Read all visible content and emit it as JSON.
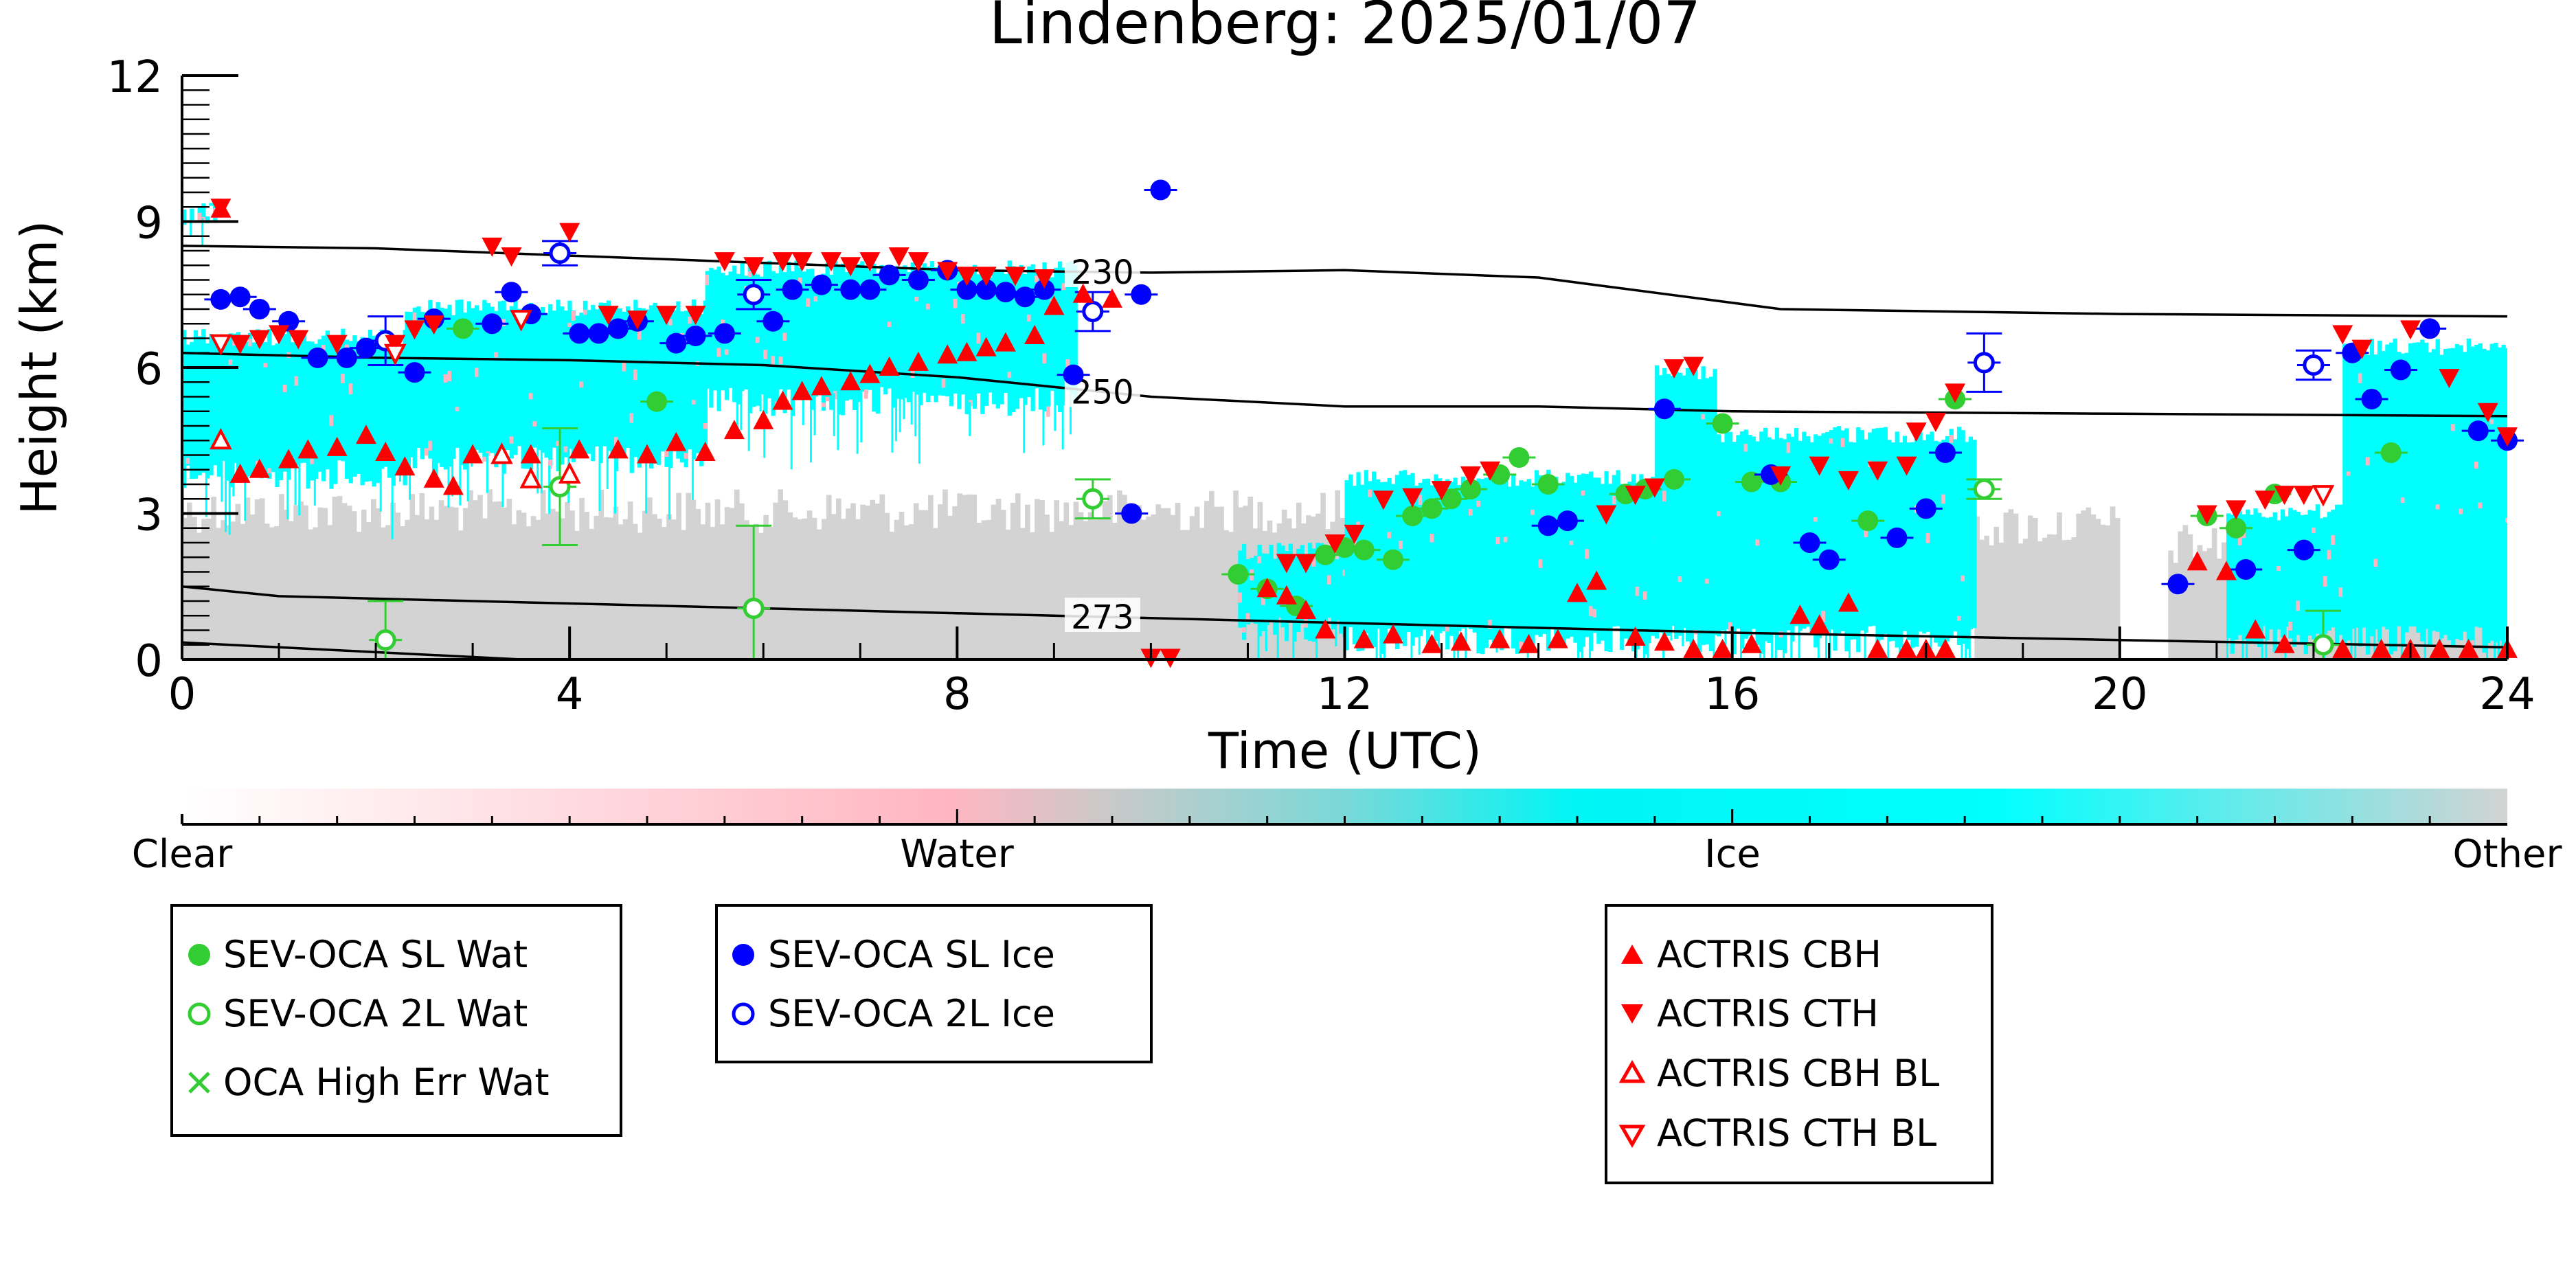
{
  "chart_data": {
    "type": "scatter",
    "title": "Lindenberg: 2025/01/07",
    "xlabel": "Time (UTC)",
    "ylabel": "Height (km)",
    "xlim": [
      0,
      24
    ],
    "ylim": [
      0,
      12
    ],
    "xticks": [
      "0",
      "4",
      "8",
      "12",
      "16",
      "20",
      "24"
    ],
    "yticks": [
      "0",
      "3",
      "6",
      "9",
      "12"
    ],
    "colorbar": {
      "labels": [
        "Clear",
        "Water",
        "Ice",
        "Other"
      ],
      "colors": [
        "#ffffff",
        "#ffb6c1",
        "#00ffff",
        "#d3d3d3"
      ]
    },
    "background_field": {
      "ice_regions": [
        {
          "t0": 0.0,
          "t1": 0.4,
          "h0": 8.9,
          "h1": 9.4
        },
        {
          "t0": 0.0,
          "t1": 2.3,
          "h0": 3.5,
          "h1": 6.8
        },
        {
          "t0": 2.3,
          "t1": 5.4,
          "h0": 3.8,
          "h1": 7.4
        },
        {
          "t0": 5.4,
          "t1": 9.2,
          "h0": 5.0,
          "h1": 8.2
        },
        {
          "t0": 10.9,
          "t1": 12.0,
          "h0": 0.3,
          "h1": 2.4
        },
        {
          "t0": 12.0,
          "t1": 15.2,
          "h0": 0.1,
          "h1": 3.9
        },
        {
          "t0": 15.2,
          "t1": 15.8,
          "h0": 0.1,
          "h1": 6.1
        },
        {
          "t0": 15.8,
          "t1": 18.5,
          "h0": 0.1,
          "h1": 4.8
        },
        {
          "t0": 21.1,
          "t1": 22.3,
          "h0": 0.1,
          "h1": 3.2
        },
        {
          "t0": 22.3,
          "t1": 24.0,
          "h0": 0.1,
          "h1": 6.6
        }
      ],
      "other_regions": [
        {
          "t0": 0.0,
          "t1": 12.0,
          "h0": 0.0,
          "h1": 3.5
        },
        {
          "t0": 18.5,
          "t1": 20.0,
          "h0": 0.0,
          "h1": 3.2
        },
        {
          "t0": 20.5,
          "t1": 24.0,
          "h0": 0.0,
          "h1": 2.8
        }
      ]
    },
    "isotherms": [
      {
        "label": "230",
        "t": [
          0,
          2,
          4,
          6,
          8,
          10,
          12,
          14,
          16.5,
          20,
          24
        ],
        "h": [
          8.5,
          8.45,
          8.3,
          8.15,
          8.0,
          7.95,
          8.0,
          7.85,
          7.2,
          7.1,
          7.05
        ],
        "label_t": 9.5
      },
      {
        "label": "250",
        "t": [
          0,
          2,
          4,
          6,
          8,
          10,
          12,
          14,
          16,
          20,
          24
        ],
        "h": [
          6.3,
          6.2,
          6.15,
          6.05,
          5.8,
          5.4,
          5.2,
          5.2,
          5.1,
          5.05,
          5.0
        ],
        "label_t": 9.5
      },
      {
        "label": "273",
        "t": [
          0,
          1,
          2,
          4,
          6,
          8,
          10,
          12,
          14,
          16,
          20,
          24
        ],
        "h": [
          1.5,
          1.3,
          1.25,
          1.15,
          1.05,
          0.95,
          0.85,
          0.75,
          0.65,
          0.55,
          0.4,
          0.25
        ],
        "label_t": 9.5
      },
      {
        "label": "",
        "t": [
          0,
          1,
          2,
          3.5
        ],
        "h": [
          0.35,
          0.25,
          0.15,
          0.0
        ]
      }
    ],
    "series": [
      {
        "name": "SEV-OCA SL Wat",
        "marker": "circle-filled",
        "color": "#32cd32",
        "points": [
          [
            2.9,
            6.8
          ],
          [
            4.9,
            5.3
          ],
          [
            10.9,
            1.75
          ],
          [
            11.2,
            1.45
          ],
          [
            11.5,
            1.1
          ],
          [
            11.8,
            2.15
          ],
          [
            12.0,
            2.3
          ],
          [
            12.2,
            2.25
          ],
          [
            12.5,
            2.05
          ],
          [
            12.7,
            2.95
          ],
          [
            12.9,
            3.1
          ],
          [
            13.1,
            3.3
          ],
          [
            13.3,
            3.5
          ],
          [
            13.6,
            3.8
          ],
          [
            13.8,
            4.15
          ],
          [
            14.1,
            3.6
          ],
          [
            14.9,
            3.4
          ],
          [
            15.1,
            3.5
          ],
          [
            15.4,
            3.7
          ],
          [
            15.9,
            4.85
          ],
          [
            16.2,
            3.65
          ],
          [
            16.5,
            3.65
          ],
          [
            17.4,
            2.85
          ],
          [
            18.3,
            5.35
          ],
          [
            20.9,
            2.95
          ],
          [
            21.2,
            2.7
          ],
          [
            21.6,
            3.4
          ],
          [
            22.8,
            4.25
          ]
        ]
      },
      {
        "name": "SEV-OCA 2L Wat",
        "marker": "circle-open",
        "color": "#32cd32",
        "points": [
          [
            2.1,
            0.4,
            0.8
          ],
          [
            3.9,
            3.55,
            1.2
          ],
          [
            5.9,
            1.05,
            1.7
          ],
          [
            9.4,
            3.3,
            0.4
          ],
          [
            18.6,
            3.5,
            0.2
          ],
          [
            22.1,
            0.3,
            0.7
          ]
        ]
      },
      {
        "name": "OCA High Err Wat",
        "marker": "x",
        "color": "#32cd32",
        "points": []
      },
      {
        "name": "SEV-OCA SL Ice",
        "marker": "circle-filled",
        "color": "#0000ff",
        "points": [
          [
            0.4,
            7.4
          ],
          [
            0.6,
            7.45
          ],
          [
            0.8,
            7.2
          ],
          [
            1.1,
            6.95
          ],
          [
            1.4,
            6.2
          ],
          [
            1.7,
            6.2
          ],
          [
            1.9,
            6.4
          ],
          [
            2.4,
            5.9
          ],
          [
            2.6,
            7.0
          ],
          [
            3.2,
            6.9
          ],
          [
            3.4,
            7.55
          ],
          [
            3.6,
            7.1
          ],
          [
            4.1,
            6.7
          ],
          [
            4.3,
            6.7
          ],
          [
            4.5,
            6.8
          ],
          [
            4.7,
            6.95
          ],
          [
            5.1,
            6.5
          ],
          [
            5.3,
            6.65
          ],
          [
            5.6,
            6.7
          ],
          [
            6.1,
            6.95
          ],
          [
            6.3,
            7.6
          ],
          [
            6.6,
            7.7
          ],
          [
            6.9,
            7.6
          ],
          [
            7.1,
            7.6
          ],
          [
            7.3,
            7.9
          ],
          [
            7.6,
            7.8
          ],
          [
            7.9,
            8.0
          ],
          [
            8.1,
            7.6
          ],
          [
            8.3,
            7.6
          ],
          [
            8.5,
            7.55
          ],
          [
            8.7,
            7.45
          ],
          [
            8.9,
            7.6
          ],
          [
            9.2,
            5.85
          ],
          [
            9.8,
            3.0
          ],
          [
            9.9,
            7.5
          ],
          [
            10.1,
            9.65
          ],
          [
            14.1,
            2.75
          ],
          [
            14.3,
            2.85
          ],
          [
            15.3,
            5.15
          ],
          [
            16.4,
            3.8
          ],
          [
            16.8,
            2.4
          ],
          [
            17.0,
            2.05
          ],
          [
            17.7,
            2.5
          ],
          [
            18.0,
            3.1
          ],
          [
            18.2,
            4.25
          ],
          [
            20.6,
            1.55
          ],
          [
            21.3,
            1.85
          ],
          [
            21.9,
            2.25
          ],
          [
            22.4,
            6.3
          ],
          [
            22.6,
            5.35
          ],
          [
            22.9,
            5.95
          ],
          [
            23.2,
            6.8
          ],
          [
            23.7,
            4.7
          ],
          [
            24.0,
            4.5
          ]
        ]
      },
      {
        "name": "SEV-OCA 2L Ice",
        "marker": "circle-open",
        "color": "#0000ff",
        "points": [
          [
            2.1,
            6.55,
            0.5
          ],
          [
            3.9,
            8.35,
            0.25
          ],
          [
            5.9,
            7.5,
            0.3
          ],
          [
            9.4,
            7.15,
            0.4
          ],
          [
            18.6,
            6.1,
            0.6
          ],
          [
            22.0,
            6.05,
            0.3
          ]
        ]
      },
      {
        "name": "ACTRIS CBH",
        "marker": "triangle-up-filled",
        "color": "#ff0000",
        "points": [
          [
            0.4,
            9.25
          ],
          [
            0.6,
            3.8
          ],
          [
            0.8,
            3.9
          ],
          [
            1.1,
            4.1
          ],
          [
            1.3,
            4.3
          ],
          [
            1.6,
            4.35
          ],
          [
            1.9,
            4.6
          ],
          [
            2.1,
            4.25
          ],
          [
            2.3,
            3.95
          ],
          [
            2.6,
            3.7
          ],
          [
            2.8,
            3.55
          ],
          [
            3.0,
            4.2
          ],
          [
            3.3,
            4.2
          ],
          [
            3.6,
            4.2
          ],
          [
            4.1,
            4.3
          ],
          [
            4.5,
            4.3
          ],
          [
            4.8,
            4.2
          ],
          [
            5.1,
            4.45
          ],
          [
            5.4,
            4.25
          ],
          [
            5.7,
            4.7
          ],
          [
            6.0,
            4.9
          ],
          [
            6.2,
            5.3
          ],
          [
            6.4,
            5.5
          ],
          [
            6.6,
            5.6
          ],
          [
            6.9,
            5.7
          ],
          [
            7.1,
            5.85
          ],
          [
            7.3,
            6.0
          ],
          [
            7.6,
            6.1
          ],
          [
            7.9,
            6.25
          ],
          [
            8.1,
            6.3
          ],
          [
            8.3,
            6.4
          ],
          [
            8.5,
            6.5
          ],
          [
            8.8,
            6.65
          ],
          [
            9.0,
            7.25
          ],
          [
            9.3,
            7.5
          ],
          [
            9.6,
            7.4
          ],
          [
            11.2,
            1.45
          ],
          [
            11.4,
            1.3
          ],
          [
            11.6,
            1.0
          ],
          [
            11.8,
            0.6
          ],
          [
            12.2,
            0.4
          ],
          [
            12.5,
            0.5
          ],
          [
            12.9,
            0.3
          ],
          [
            13.2,
            0.35
          ],
          [
            13.6,
            0.4
          ],
          [
            13.9,
            0.3
          ],
          [
            14.2,
            0.4
          ],
          [
            14.4,
            1.35
          ],
          [
            14.6,
            1.6
          ],
          [
            15.0,
            0.45
          ],
          [
            15.3,
            0.35
          ],
          [
            15.6,
            0.2
          ],
          [
            15.9,
            0.2
          ],
          [
            16.2,
            0.3
          ],
          [
            16.7,
            0.9
          ],
          [
            16.9,
            0.7
          ],
          [
            17.2,
            1.15
          ],
          [
            17.5,
            0.2
          ],
          [
            17.8,
            0.2
          ],
          [
            18.0,
            0.2
          ],
          [
            18.2,
            0.2
          ],
          [
            20.8,
            2.0
          ],
          [
            21.1,
            1.8
          ],
          [
            21.4,
            0.6
          ],
          [
            21.7,
            0.3
          ],
          [
            22.3,
            0.2
          ],
          [
            22.7,
            0.2
          ],
          [
            23.0,
            0.2
          ],
          [
            23.3,
            0.2
          ],
          [
            23.6,
            0.2
          ],
          [
            24.0,
            0.2
          ]
        ]
      },
      {
        "name": "ACTRIS CTH",
        "marker": "triangle-down-filled",
        "color": "#ff0000",
        "points": [
          [
            0.4,
            9.3
          ],
          [
            0.6,
            6.5
          ],
          [
            0.8,
            6.6
          ],
          [
            1.0,
            6.7
          ],
          [
            1.2,
            6.6
          ],
          [
            1.6,
            6.5
          ],
          [
            2.2,
            6.5
          ],
          [
            2.4,
            6.8
          ],
          [
            2.6,
            6.9
          ],
          [
            3.2,
            8.5
          ],
          [
            3.4,
            8.3
          ],
          [
            4.0,
            8.8
          ],
          [
            4.4,
            7.1
          ],
          [
            4.7,
            7.0
          ],
          [
            5.0,
            7.1
          ],
          [
            5.3,
            7.1
          ],
          [
            5.6,
            8.2
          ],
          [
            5.9,
            8.1
          ],
          [
            6.2,
            8.2
          ],
          [
            6.4,
            8.2
          ],
          [
            6.7,
            8.2
          ],
          [
            6.9,
            8.1
          ],
          [
            7.1,
            8.2
          ],
          [
            7.4,
            8.3
          ],
          [
            7.6,
            8.2
          ],
          [
            7.9,
            8.0
          ],
          [
            8.1,
            7.9
          ],
          [
            8.3,
            7.9
          ],
          [
            8.6,
            7.9
          ],
          [
            8.9,
            7.85
          ],
          [
            10.0,
            0.05
          ],
          [
            10.2,
            0.05
          ],
          [
            11.4,
            2.0
          ],
          [
            11.6,
            2.0
          ],
          [
            11.9,
            2.4
          ],
          [
            12.1,
            2.6
          ],
          [
            12.4,
            3.3
          ],
          [
            12.7,
            3.35
          ],
          [
            13.0,
            3.5
          ],
          [
            13.3,
            3.8
          ],
          [
            13.5,
            3.9
          ],
          [
            14.7,
            3.0
          ],
          [
            15.0,
            3.4
          ],
          [
            15.2,
            3.55
          ],
          [
            15.4,
            6.0
          ],
          [
            15.6,
            6.05
          ],
          [
            16.5,
            3.8
          ],
          [
            16.9,
            4.0
          ],
          [
            17.2,
            3.7
          ],
          [
            17.5,
            3.9
          ],
          [
            17.8,
            4.0
          ],
          [
            17.9,
            4.7
          ],
          [
            18.1,
            4.9
          ],
          [
            18.3,
            5.5
          ],
          [
            20.9,
            3.0
          ],
          [
            21.2,
            3.1
          ],
          [
            21.5,
            3.3
          ],
          [
            21.7,
            3.4
          ],
          [
            21.9,
            3.4
          ],
          [
            22.3,
            6.7
          ],
          [
            22.5,
            6.4
          ],
          [
            23.0,
            6.8
          ],
          [
            23.4,
            5.8
          ],
          [
            23.8,
            5.1
          ],
          [
            24.0,
            4.6
          ]
        ]
      },
      {
        "name": "ACTRIS CBH BL",
        "marker": "triangle-up-open",
        "color": "#ff0000",
        "points": [
          [
            0.4,
            4.5
          ],
          [
            3.3,
            4.2
          ],
          [
            3.6,
            3.7
          ],
          [
            4.0,
            3.8
          ]
        ]
      },
      {
        "name": "ACTRIS CTH BL",
        "marker": "triangle-down-open",
        "color": "#ff0000",
        "points": [
          [
            0.4,
            6.5
          ],
          [
            2.2,
            6.3
          ],
          [
            3.5,
            7.0
          ],
          [
            22.1,
            3.4
          ]
        ]
      }
    ],
    "legend_groups": [
      [
        "SEV-OCA SL Wat",
        "SEV-OCA 2L Wat",
        "OCA High Err Wat"
      ],
      [
        "SEV-OCA SL Ice",
        "SEV-OCA 2L Ice"
      ],
      [
        "ACTRIS CBH",
        "ACTRIS CTH",
        "ACTRIS CBH BL",
        "ACTRIS CTH BL"
      ]
    ],
    "grid": false,
    "legend_position": "bottom"
  }
}
